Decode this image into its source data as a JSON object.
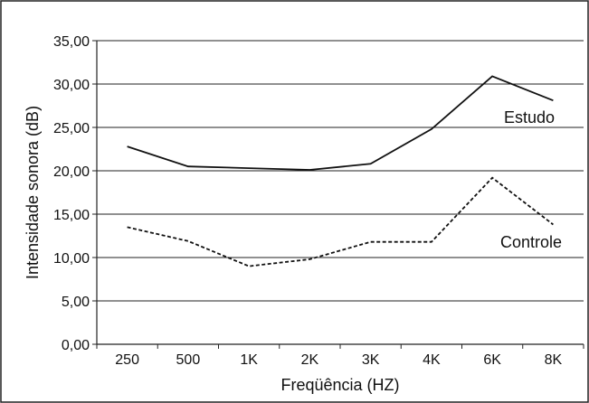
{
  "chart_data": {
    "type": "line",
    "title": "",
    "xlabel": "Freqüência (HZ)",
    "ylabel": "Intensidade sonora (dB)",
    "categories": [
      "250",
      "500",
      "1K",
      "2K",
      "3K",
      "4K",
      "6K",
      "8K"
    ],
    "ylim": [
      0,
      35
    ],
    "yticks": [
      "0,00",
      "5,00",
      "10,00",
      "15,00",
      "20,00",
      "25,00",
      "30,00",
      "35,00"
    ],
    "grid": true,
    "legend": "none",
    "series": [
      {
        "name": "Estudo",
        "values": [
          22.8,
          20.5,
          20.3,
          20.1,
          20.8,
          24.8,
          30.9,
          28.1
        ],
        "style": "solid",
        "color": "#111111"
      },
      {
        "name": "Controle",
        "values": [
          13.5,
          11.9,
          9.0,
          9.8,
          11.8,
          11.8,
          19.2,
          13.8
        ],
        "style": "dashed",
        "color": "#111111"
      }
    ]
  }
}
